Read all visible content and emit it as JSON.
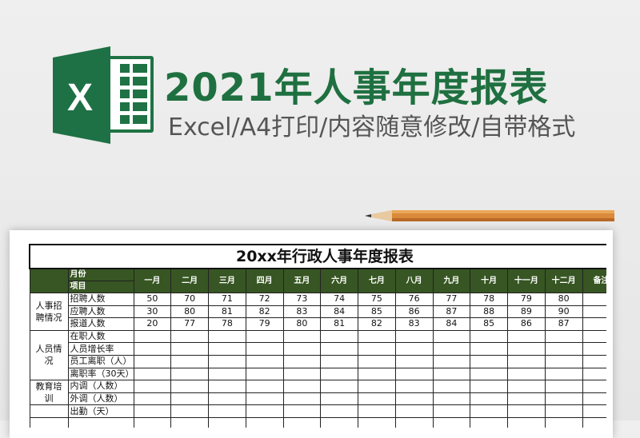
{
  "banner": {
    "title": "2021年人事年度报表",
    "subtitle": "Excel/A4打印/内容随意修改/自带格式",
    "logo_letter": "X"
  },
  "colors": {
    "brand_green": "#1f7040",
    "header_green": "#375623"
  },
  "sheet": {
    "title": "20xx年行政人事年度报表",
    "header": {
      "month_label": "月份",
      "item_label": "项目",
      "months": [
        "一月",
        "二月",
        "三月",
        "四月",
        "五月",
        "六月",
        "七月",
        "八月",
        "九月",
        "十月",
        "十一月",
        "十二月"
      ],
      "remark": "备注"
    },
    "groups": [
      {
        "name": "人事招聘情况",
        "rows": [
          {
            "item": "招聘人数",
            "values": [
              "50",
              "70",
              "71",
              "72",
              "73",
              "74",
              "75",
              "76",
              "77",
              "78",
              "79",
              "80"
            ]
          },
          {
            "item": "应聘人数",
            "values": [
              "30",
              "80",
              "81",
              "82",
              "83",
              "84",
              "85",
              "86",
              "87",
              "88",
              "89",
              "90"
            ]
          },
          {
            "item": "报道人数",
            "values": [
              "20",
              "77",
              "78",
              "79",
              "80",
              "81",
              "82",
              "83",
              "84",
              "85",
              "86",
              "87"
            ]
          }
        ]
      },
      {
        "name": "人员情况",
        "rows": [
          {
            "item": "在职人数"
          },
          {
            "item": "人员增长率"
          },
          {
            "item": "员工离职（人）"
          },
          {
            "item": "离职率（30天）"
          }
        ]
      },
      {
        "name": "教育培训",
        "rows": [
          {
            "item": "内调（人数）"
          },
          {
            "item": "外调（人数）"
          }
        ]
      },
      {
        "name": "",
        "rows": [
          {
            "item": "出勤（天）"
          }
        ]
      },
      {
        "name": "",
        "rows": [
          {
            "item": ""
          }
        ]
      }
    ]
  }
}
